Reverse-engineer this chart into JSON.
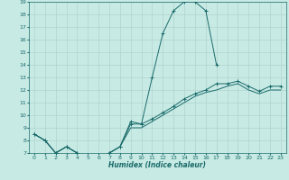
{
  "xlabel": "Humidex (Indice chaleur)",
  "background_color": "#c8eae4",
  "grid_color": "#b0d4ce",
  "line_color": "#1a6b6b",
  "xlim": [
    -0.5,
    23.5
  ],
  "ylim": [
    7,
    19
  ],
  "xticks": [
    0,
    1,
    2,
    3,
    4,
    5,
    6,
    7,
    8,
    9,
    10,
    11,
    12,
    13,
    14,
    15,
    16,
    17,
    18,
    19,
    20,
    21,
    22,
    23
  ],
  "yticks": [
    7,
    8,
    9,
    10,
    11,
    12,
    13,
    14,
    15,
    16,
    17,
    18,
    19
  ],
  "line1_x": [
    0,
    1,
    2,
    3,
    4,
    5,
    6,
    7,
    8,
    9,
    10,
    11,
    12,
    13,
    14,
    15,
    16,
    17
  ],
  "line1_y": [
    8.5,
    8.0,
    7.0,
    7.5,
    7.0,
    6.65,
    6.65,
    7.0,
    7.5,
    9.5,
    9.3,
    13.0,
    16.5,
    18.3,
    19.0,
    19.0,
    18.3,
    14.0
  ],
  "line2_x": [
    0,
    1,
    2,
    3,
    4,
    5,
    6,
    7,
    8,
    9,
    10,
    11,
    12,
    13,
    14,
    15,
    16,
    17,
    18,
    19,
    20,
    21,
    22,
    23
  ],
  "line2_y": [
    8.5,
    8.0,
    7.0,
    7.5,
    7.0,
    6.65,
    6.65,
    7.0,
    7.5,
    9.3,
    9.3,
    9.7,
    10.2,
    10.7,
    11.3,
    11.7,
    12.0,
    12.5,
    12.5,
    12.7,
    12.3,
    11.9,
    12.3,
    12.3
  ],
  "line3_x": [
    0,
    1,
    2,
    3,
    4,
    5,
    6,
    7,
    8,
    9,
    10,
    11,
    12,
    13,
    14,
    15,
    16,
    17,
    18,
    19,
    20,
    21,
    22,
    23
  ],
  "line3_y": [
    8.5,
    8.0,
    7.0,
    7.5,
    7.0,
    6.65,
    6.65,
    7.0,
    7.5,
    9.0,
    9.0,
    9.5,
    10.0,
    10.5,
    11.0,
    11.5,
    11.8,
    12.0,
    12.3,
    12.5,
    12.0,
    11.7,
    12.0,
    12.0
  ]
}
